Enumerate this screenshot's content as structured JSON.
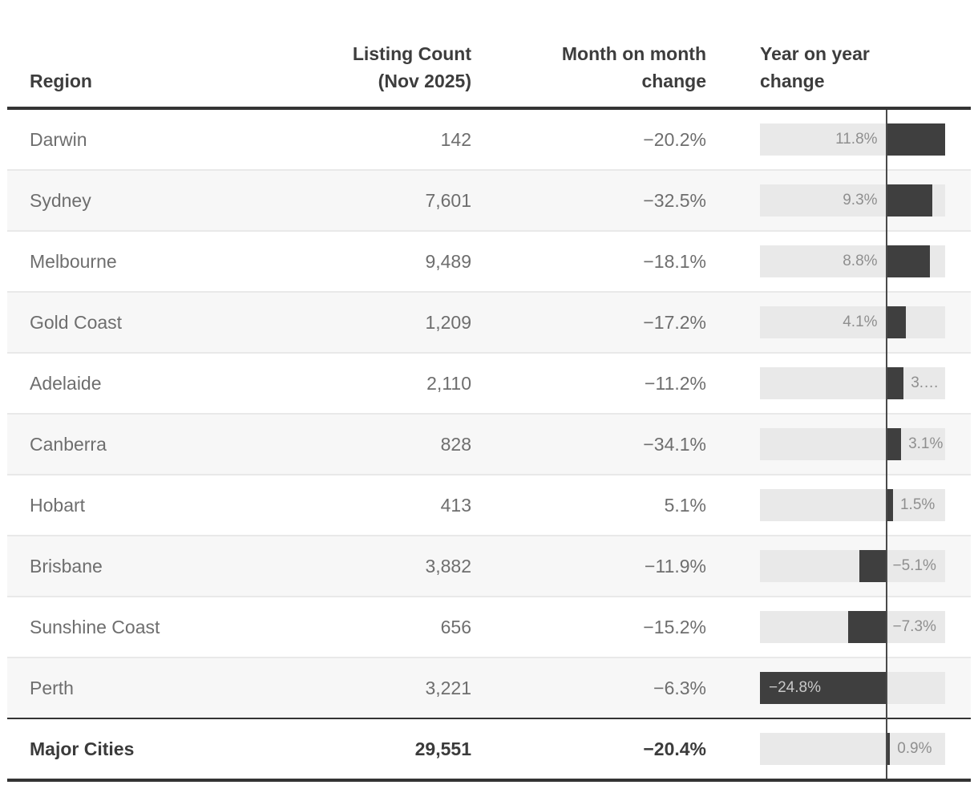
{
  "chart_data": {
    "type": "table",
    "columns": [
      "Region",
      "Listing Count\n(Nov 2025)",
      "Month on month\nchange",
      "Year on year\nchange"
    ],
    "yoy_axis": {
      "min": -24.8,
      "max": 11.8,
      "zero_line": true
    },
    "rows": [
      {
        "region": "Darwin",
        "listing_count": "142",
        "mom_change": "−20.2%",
        "yoy_value": 11.8,
        "yoy_label": "11.8%",
        "label_pos": "outside-left"
      },
      {
        "region": "Sydney",
        "listing_count": "7,601",
        "mom_change": "−32.5%",
        "yoy_value": 9.3,
        "yoy_label": "9.3%",
        "label_pos": "outside-left"
      },
      {
        "region": "Melbourne",
        "listing_count": "9,489",
        "mom_change": "−18.1%",
        "yoy_value": 8.8,
        "yoy_label": "8.8%",
        "label_pos": "outside-left"
      },
      {
        "region": "Gold Coast",
        "listing_count": "1,209",
        "mom_change": "−17.2%",
        "yoy_value": 4.1,
        "yoy_label": "4.1%",
        "label_pos": "outside-left"
      },
      {
        "region": "Adelaide",
        "listing_count": "2,110",
        "mom_change": "−11.2%",
        "yoy_value": 3.6,
        "yoy_label": "3.…",
        "label_pos": "outside-right"
      },
      {
        "region": "Canberra",
        "listing_count": "828",
        "mom_change": "−34.1%",
        "yoy_value": 3.1,
        "yoy_label": "3.1%",
        "label_pos": "outside-right"
      },
      {
        "region": "Hobart",
        "listing_count": "413",
        "mom_change": "5.1%",
        "yoy_value": 1.5,
        "yoy_label": "1.5%",
        "label_pos": "outside-right"
      },
      {
        "region": "Brisbane",
        "listing_count": "3,882",
        "mom_change": "−11.9%",
        "yoy_value": -5.1,
        "yoy_label": "−5.1%",
        "label_pos": "outside-right"
      },
      {
        "region": "Sunshine Coast",
        "listing_count": "656",
        "mom_change": "−15.2%",
        "yoy_value": -7.3,
        "yoy_label": "−7.3%",
        "label_pos": "outside-right"
      },
      {
        "region": "Perth",
        "listing_count": "3,221",
        "mom_change": "−6.3%",
        "yoy_value": -24.8,
        "yoy_label": "−24.8%",
        "label_pos": "inside-left"
      },
      {
        "region": "Major Cities",
        "listing_count": "29,551",
        "mom_change": "−20.4%",
        "yoy_value": 0.9,
        "yoy_label": "0.9%",
        "label_pos": "outside-right",
        "is_total": true
      }
    ]
  },
  "colors": {
    "bar": "#3f3f3f",
    "bar_track": "#e9e9e9",
    "row_stripe": "#f7f7f7",
    "zero_line": "#4a4a4a",
    "rule_dark": "#343434",
    "row_divider": "#e9e9e9",
    "body_text": "#6e6e6e",
    "header_text": "#3d3d3d",
    "bar_label": "#8f8f8f",
    "bar_label_inside": "#c9c9c9"
  }
}
